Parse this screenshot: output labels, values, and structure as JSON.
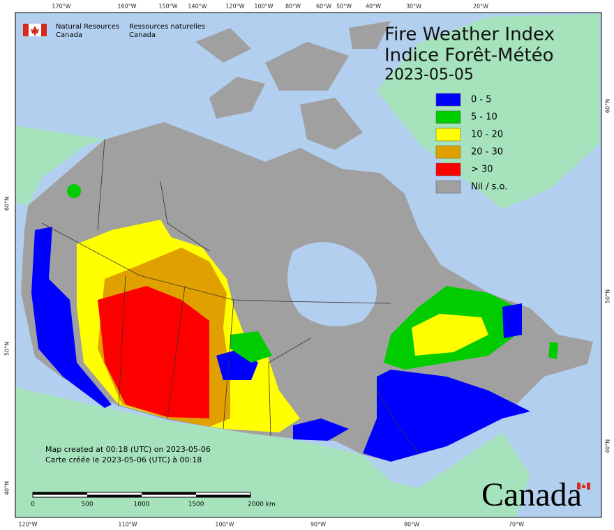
{
  "header": {
    "ministry_en": [
      "Natural Resources",
      "Canada"
    ],
    "ministry_fr": [
      "Ressources naturelles",
      "Canada"
    ]
  },
  "title": {
    "line1": "Fire Weather Index",
    "line2": "Indice Forêt-Météo",
    "date": "2023-05-05"
  },
  "legend": [
    {
      "label": "0 - 5",
      "color": "#0000ff"
    },
    {
      "label": "5 - 10",
      "color": "#00cc00"
    },
    {
      "label": "10 - 20",
      "color": "#ffff00"
    },
    {
      "label": "20 - 30",
      "color": "#e0a000"
    },
    {
      "label": "> 30",
      "color": "#ff0000"
    },
    {
      "label": "Nil / s.o.",
      "color": "#a0a0a0"
    }
  ],
  "footnote": [
    "Map created at 00:18 (UTC) on 2023-05-06",
    "Carte créée le 2023-05-06 (UTC) à 00:18"
  ],
  "scale_bar": [
    "0",
    "500",
    "1000",
    "1500",
    "2000 km"
  ],
  "graticule": {
    "top": [
      "170°W",
      "160°W",
      "150°W",
      "140°W",
      "120°W",
      "100°W",
      "80°W",
      "60°W",
      "50°W",
      "40°W",
      "30°W",
      "20°W"
    ],
    "bottom": [
      "120°W",
      "110°W",
      "100°W",
      "90°W",
      "80°W",
      "70°W"
    ],
    "left": [
      "60°N",
      "50°N",
      "40°N"
    ],
    "right": [
      "60°N",
      "50°N",
      "40°N"
    ]
  },
  "wordmark": "Canada"
}
